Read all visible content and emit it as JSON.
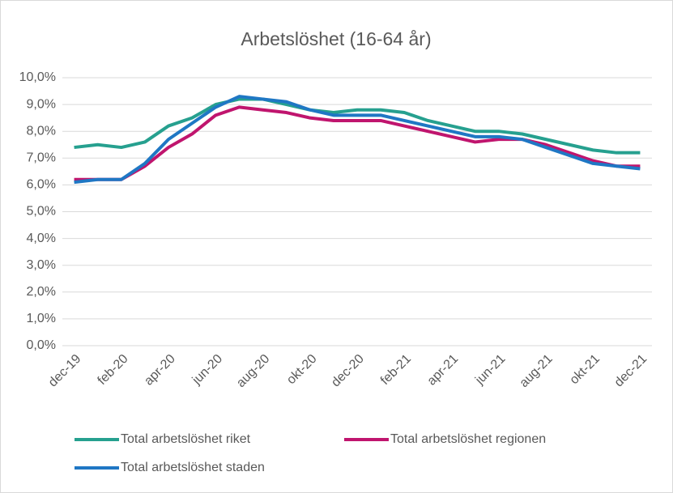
{
  "chart_data": {
    "type": "line",
    "title": "Arbetslöshet (16-64 år)",
    "categories": [
      "dec-19",
      null,
      "feb-20",
      null,
      "apr-20",
      null,
      "jun-20",
      null,
      "aug-20",
      null,
      "okt-20",
      null,
      "dec-20",
      null,
      "feb-21",
      null,
      "apr-21",
      null,
      "jun-21",
      null,
      "aug-21",
      null,
      "okt-21",
      null,
      "dec-21"
    ],
    "series": [
      {
        "name": "Total arbetslöshet riket",
        "color": "#26a08f",
        "values": [
          7.4,
          7.5,
          7.4,
          7.6,
          8.2,
          8.5,
          9.0,
          9.2,
          9.2,
          9.0,
          8.8,
          8.7,
          8.8,
          8.8,
          8.7,
          8.4,
          8.2,
          8.0,
          8.0,
          7.9,
          7.7,
          7.5,
          7.3,
          7.2,
          7.2
        ]
      },
      {
        "name": "Total arbetslöshet regionen",
        "color": "#c0156e",
        "values": [
          6.2,
          6.2,
          6.2,
          6.7,
          7.4,
          7.9,
          8.6,
          8.9,
          8.8,
          8.7,
          8.5,
          8.4,
          8.4,
          8.4,
          8.2,
          8.0,
          7.8,
          7.6,
          7.7,
          7.7,
          7.5,
          7.2,
          6.9,
          6.7,
          6.7
        ]
      },
      {
        "name": "Total arbetslöshet staden",
        "color": "#1f77c4",
        "values": [
          6.1,
          6.2,
          6.2,
          6.8,
          7.7,
          8.3,
          8.9,
          9.3,
          9.2,
          9.1,
          8.8,
          8.6,
          8.6,
          8.6,
          8.4,
          8.2,
          8.0,
          7.8,
          7.8,
          7.7,
          7.4,
          7.1,
          6.8,
          6.7,
          6.6
        ]
      }
    ],
    "ylim": [
      0,
      10
    ],
    "yticks": [
      {
        "value": 0,
        "label": "0,0%"
      },
      {
        "value": 1,
        "label": "1,0%"
      },
      {
        "value": 2,
        "label": "2,0%"
      },
      {
        "value": 3,
        "label": "3,0%"
      },
      {
        "value": 4,
        "label": "4,0%"
      },
      {
        "value": 5,
        "label": "5,0%"
      },
      {
        "value": 6,
        "label": "6,0%"
      },
      {
        "value": 7,
        "label": "7,0%"
      },
      {
        "value": 8,
        "label": "8,0%"
      },
      {
        "value": 9,
        "label": "9,0%"
      },
      {
        "value": 10,
        "label": "10,0%"
      }
    ],
    "grid": true,
    "legend": "bottom"
  }
}
